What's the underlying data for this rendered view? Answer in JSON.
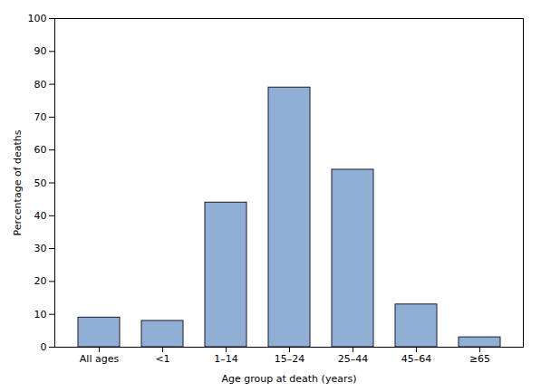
{
  "chart_data": {
    "type": "bar",
    "categories": [
      "All ages",
      "<1",
      "1–14",
      "15–24",
      "25–44",
      "45–64",
      "≥65"
    ],
    "values": [
      9,
      8,
      44,
      79,
      54,
      13,
      3
    ],
    "color": "#8fafd4",
    "xlabel": "Age group at death (years)",
    "ylabel": "Percentage of deaths",
    "ylim": [
      0,
      100
    ],
    "yticks": [
      0,
      10,
      20,
      30,
      40,
      50,
      60,
      70,
      80,
      90,
      100
    ],
    "grid": false
  }
}
